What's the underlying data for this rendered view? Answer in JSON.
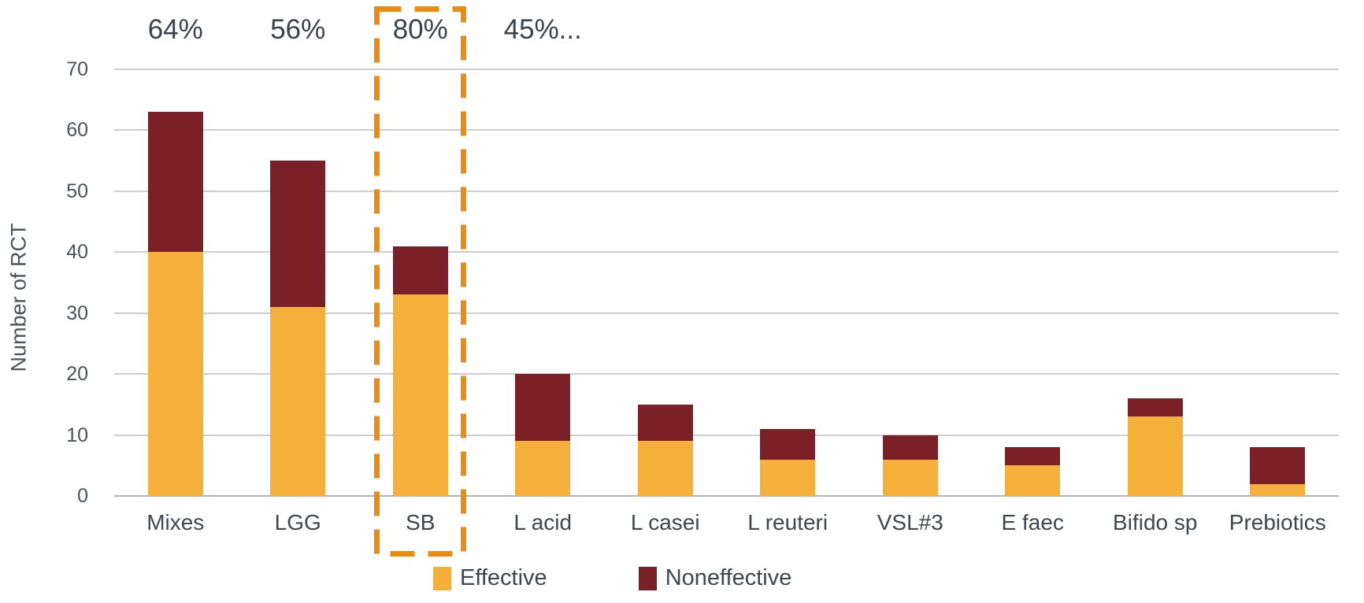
{
  "figure": {
    "background": "#FFFFFF"
  },
  "chart_data": {
    "type": "bar",
    "stacked": true,
    "title": "",
    "xlabel": "",
    "ylabel": "Number of RCT",
    "ylim": [
      0,
      70
    ],
    "yticks": [
      0,
      10,
      20,
      30,
      40,
      50,
      60,
      70
    ],
    "grid": true,
    "legend_position": "bottom",
    "categories": [
      "Mixes",
      "LGG",
      "SB",
      "L acid",
      "L casei",
      "L reuteri",
      "VSL#3",
      "E faec",
      "Bifido sp",
      "Prebiotics"
    ],
    "series": [
      {
        "name": "Effective",
        "color": "#F5B03C",
        "values": [
          40,
          31,
          33,
          9,
          9,
          6,
          6,
          5,
          13,
          2
        ]
      },
      {
        "name": "Noneffective",
        "color": "#7A2026",
        "values": [
          23,
          24,
          8,
          11,
          6,
          5,
          4,
          3,
          3,
          6
        ]
      }
    ],
    "totals": [
      63,
      55,
      41,
      20,
      15,
      11,
      10,
      8,
      16,
      8
    ],
    "percent_labels": [
      {
        "category": "Mixes",
        "text": "64%"
      },
      {
        "category": "LGG",
        "text": "56%"
      },
      {
        "category": "SB",
        "text": "80%"
      },
      {
        "category": "L acid",
        "text": "45%..."
      }
    ],
    "highlight": {
      "category": "SB",
      "shape": "dashed-rectangle",
      "color": "#EB8C10"
    }
  },
  "colors": {
    "gridline": "#CDCDCD",
    "zero_line": "#B3B3B3",
    "text": "#3E4750"
  }
}
